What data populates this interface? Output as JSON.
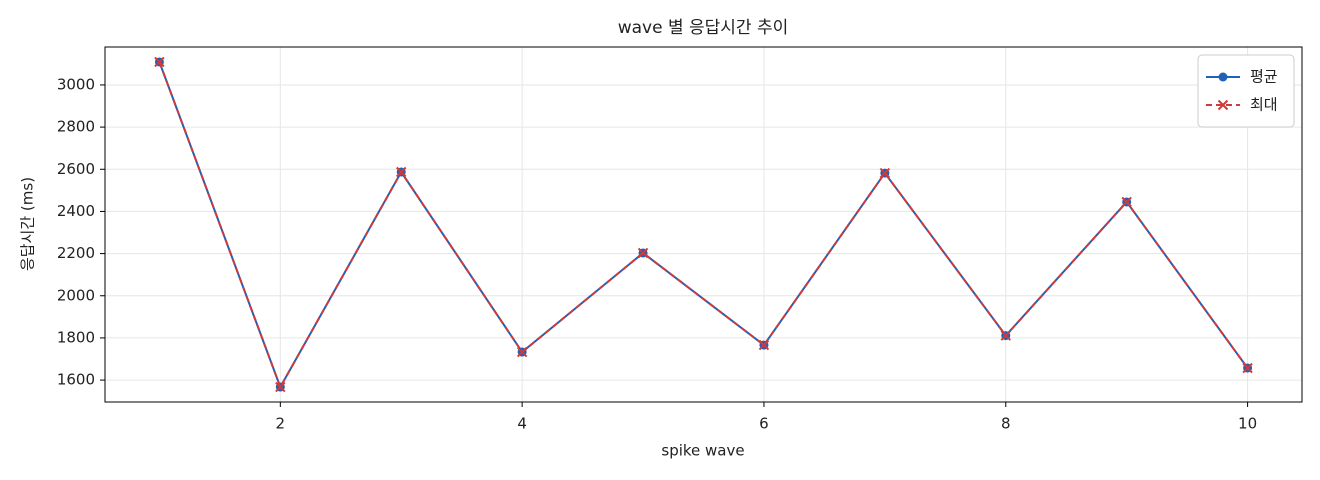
{
  "chart_data": {
    "type": "line",
    "title": "wave 별 응답시간 추이",
    "xlabel": "spike wave",
    "ylabel": "응답시간 (ms)",
    "x": [
      1,
      2,
      3,
      4,
      5,
      6,
      7,
      8,
      9,
      10
    ],
    "series": [
      {
        "name": "평균",
        "color": "#1f62b8",
        "marker": "circle",
        "dashed": false,
        "values": [
          3109,
          1567,
          2587,
          1733,
          2203,
          1766,
          2582,
          1811,
          2445,
          1657
        ]
      },
      {
        "name": "최대",
        "color": "#d03a3a",
        "marker": "x",
        "dashed": true,
        "values": [
          3109,
          1567,
          2587,
          1733,
          2203,
          1766,
          2582,
          1811,
          2445,
          1657
        ]
      }
    ],
    "xlim": [
      0.55,
      10.45
    ],
    "xticks": [
      2,
      4,
      6,
      8,
      10
    ],
    "ylim": [
      1496,
      3180
    ],
    "yticks": [
      1600,
      1800,
      2000,
      2200,
      2400,
      2600,
      2800,
      3000
    ],
    "grid": true,
    "legend": "upper right"
  }
}
